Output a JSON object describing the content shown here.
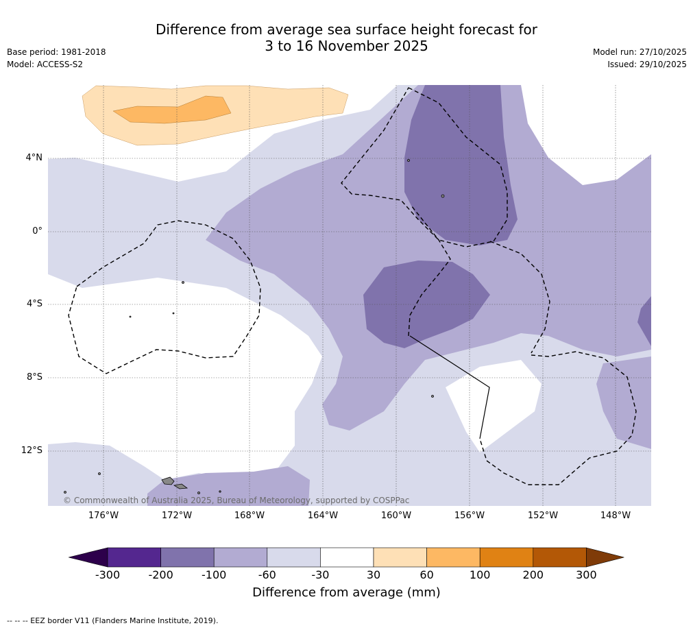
{
  "header": {
    "title_line1": "Difference from average sea surface height forecast for",
    "title_line2": "3 to 16 November 2025",
    "base_period": "Base period: 1981-2018",
    "model": "Model: ACCESS-S2",
    "model_run": "Model run: 27/10/2025",
    "issued": "Issued: 29/10/2025"
  },
  "map": {
    "lat_labels": [
      "4°N",
      "0°",
      "4°S",
      "8°S",
      "12°S"
    ],
    "lon_labels": [
      "176°W",
      "172°W",
      "168°W",
      "164°W",
      "160°W",
      "156°W",
      "152°W",
      "148°W"
    ],
    "copyright": "© Commonwealth of Australia 2025, Bureau of Meteorology, supported by COSPPac"
  },
  "legend": {
    "ticks": [
      "-300",
      "-200",
      "-100",
      "-60",
      "-30",
      "30",
      "60",
      "100",
      "200",
      "300"
    ],
    "colors": [
      "#54278f",
      "#8073ac",
      "#b2abd2",
      "#d8daeb",
      "#ffffff",
      "#fee0b6",
      "#fdb863",
      "#e08214",
      "#b35806"
    ],
    "under_color": "#2d004b",
    "over_color": "#7f3b08",
    "label": "Difference from average (mm)"
  },
  "footnote": "-- -- -- EEZ border V11 (Flanders Marine Institute, 2019)."
}
